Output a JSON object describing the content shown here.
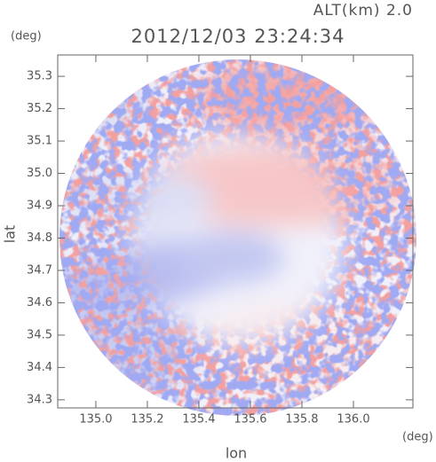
{
  "chart_data": {
    "type": "radar-field",
    "header": "ALT(km) 2.0",
    "title": "2012/12/03 23:24:34",
    "x_label": "lon",
    "y_label": "lat",
    "x_unit": "(deg)",
    "y_unit": "(deg)",
    "xlim": [
      134.852,
      136.231
    ],
    "ylim": [
      34.275,
      35.366
    ],
    "xticks": [
      {
        "value": 135.0,
        "label": "135.0"
      },
      135.2,
      135.4,
      135.6,
      135.8,
      {
        "value": 136.0,
        "label": "136.0"
      }
    ],
    "yticks": [
      34.3,
      34.4,
      34.5,
      34.6,
      34.7,
      34.8,
      34.9,
      {
        "value": 35.0,
        "label": "35.0"
      },
      35.1,
      35.2,
      35.3
    ]
  }
}
